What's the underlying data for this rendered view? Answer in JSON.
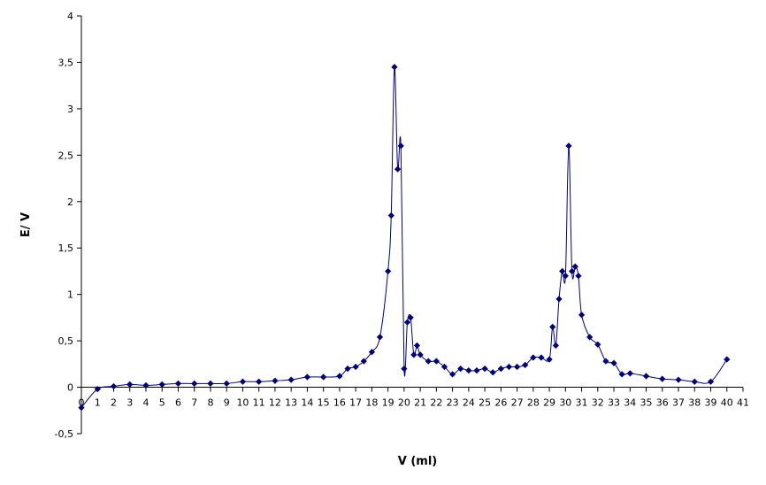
{
  "chart_data": {
    "type": "line",
    "title": "",
    "xlabel": "V (ml)",
    "ylabel": "E/ V",
    "xlim": [
      0,
      41
    ],
    "ylim": [
      -0.5,
      4
    ],
    "x_ticks": [
      0,
      1,
      2,
      3,
      4,
      5,
      6,
      7,
      8,
      9,
      10,
      11,
      12,
      13,
      14,
      15,
      16,
      17,
      18,
      19,
      20,
      21,
      22,
      23,
      24,
      25,
      26,
      27,
      28,
      29,
      30,
      31,
      32,
      33,
      34,
      35,
      36,
      37,
      38,
      39,
      40,
      41
    ],
    "x_tick_labels": [
      "0",
      "1",
      "2",
      "3",
      "4",
      "5",
      "6",
      "7",
      "8",
      "9",
      "10",
      "11",
      "12",
      "13",
      "14",
      "15",
      "16",
      "17",
      "18",
      "19",
      "20",
      "21",
      "22",
      "23",
      "24",
      "25",
      "26",
      "27",
      "28",
      "29",
      "30",
      "31",
      "32",
      "33",
      "34",
      "35",
      "36",
      "37",
      "38",
      "39",
      "40",
      "41"
    ],
    "y_ticks": [
      -0.5,
      0,
      0.5,
      1,
      1.5,
      2,
      2.5,
      3,
      3.5,
      4
    ],
    "y_tick_labels": [
      "-0,5",
      "0",
      "0,5",
      "1",
      "1,5",
      "2",
      "2,5",
      "3",
      "3,5",
      "4"
    ],
    "grid": false,
    "legend": "none",
    "series": [
      {
        "color": "#00007f",
        "marker": "diamond",
        "x": [
          0,
          1,
          2,
          3,
          4,
          5,
          6,
          7,
          8,
          9,
          10,
          11,
          12,
          13,
          14,
          15,
          16,
          16.5,
          17,
          17.5,
          18,
          18.5,
          19,
          19.2,
          19.4,
          19.6,
          19.8,
          20,
          20.2,
          20.4,
          20.6,
          20.8,
          21,
          21.5,
          22,
          22.5,
          23,
          23.5,
          24,
          24.5,
          25,
          25.5,
          26,
          26.5,
          27,
          27.5,
          28,
          28.5,
          29,
          29.2,
          29.4,
          29.6,
          29.8,
          30,
          30.2,
          30.4,
          30.6,
          30.8,
          31,
          31.5,
          32,
          32.5,
          33,
          33.5,
          34,
          35,
          36,
          37,
          38,
          39,
          40
        ],
        "y": [
          -0.22,
          -0.02,
          0.01,
          0.03,
          0.02,
          0.03,
          0.04,
          0.04,
          0.04,
          0.04,
          0.06,
          0.06,
          0.07,
          0.08,
          0.11,
          0.11,
          0.12,
          0.2,
          0.22,
          0.28,
          0.38,
          0.54,
          1.25,
          1.85,
          3.45,
          2.35,
          2.6,
          0.2,
          0.7,
          0.75,
          0.35,
          0.45,
          0.35,
          0.28,
          0.28,
          0.22,
          0.14,
          0.2,
          0.18,
          0.18,
          0.2,
          0.16,
          0.2,
          0.22,
          0.22,
          0.24,
          0.32,
          0.32,
          0.3,
          0.65,
          0.45,
          0.95,
          1.25,
          1.2,
          2.6,
          1.25,
          1.3,
          1.2,
          0.78,
          0.54,
          0.46,
          0.28,
          0.26,
          0.14,
          0.15,
          0.12,
          0.09,
          0.08,
          0.06,
          0.06,
          0.3
        ]
      }
    ]
  }
}
